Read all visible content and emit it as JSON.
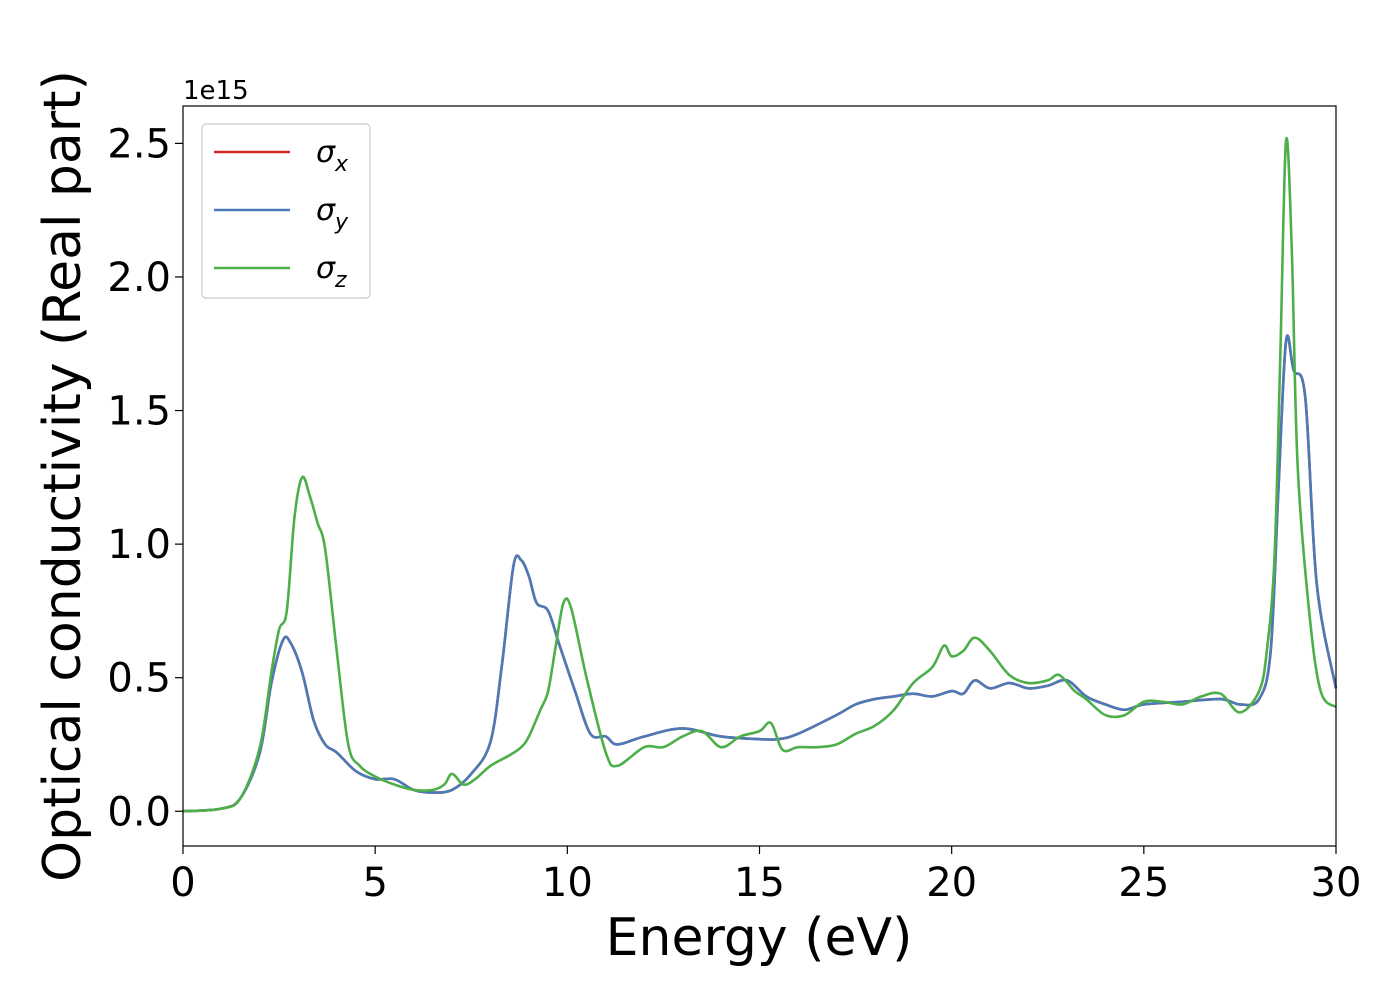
{
  "chart_data": {
    "type": "line",
    "xlabel": "Energy (eV)",
    "ylabel": "Optical conductivity (Real part)",
    "y_offset_text": "1e15",
    "xlim": [
      0,
      30
    ],
    "ylim": [
      -0.13,
      2.64
    ],
    "x_ticks": [
      0,
      5,
      10,
      15,
      20,
      25,
      30
    ],
    "x_tick_labels": [
      "0",
      "5",
      "10",
      "15",
      "20",
      "25",
      "30"
    ],
    "y_ticks": [
      0,
      0.5,
      1.0,
      1.5,
      2.0,
      2.5
    ],
    "y_tick_labels": [
      "0.0",
      "0.5",
      "1.0",
      "1.5",
      "2.0",
      "2.5"
    ],
    "grid": false,
    "legend_position": "top-left",
    "series": [
      {
        "name": "σx",
        "base": "σ",
        "sub": "x",
        "color": "#d62728",
        "x": [
          0,
          1,
          1.5,
          2,
          2.3,
          2.6,
          2.8,
          3.1,
          3.4,
          3.7,
          4,
          4.5,
          5,
          5.5,
          6,
          6.5,
          7,
          7.5,
          8,
          8.3,
          8.6,
          8.8,
          9,
          9.2,
          9.5,
          9.8,
          10.2,
          10.6,
          11,
          11.3,
          12,
          13,
          14,
          15,
          15.5,
          16,
          17,
          17.5,
          18,
          18.5,
          19,
          19.5,
          20,
          20.3,
          20.6,
          21,
          21.5,
          22,
          22.5,
          23,
          23.5,
          24,
          24.5,
          25,
          26,
          27,
          27.5,
          28,
          28.3,
          28.5,
          28.7,
          28.9,
          29.2,
          29.5,
          30
        ],
        "y": [
          0,
          0.01,
          0.05,
          0.22,
          0.48,
          0.64,
          0.63,
          0.52,
          0.34,
          0.25,
          0.22,
          0.15,
          0.12,
          0.12,
          0.08,
          0.07,
          0.08,
          0.14,
          0.26,
          0.55,
          0.92,
          0.94,
          0.88,
          0.78,
          0.75,
          0.62,
          0.45,
          0.29,
          0.28,
          0.25,
          0.28,
          0.31,
          0.28,
          0.27,
          0.27,
          0.29,
          0.36,
          0.4,
          0.42,
          0.43,
          0.44,
          0.43,
          0.45,
          0.44,
          0.49,
          0.46,
          0.48,
          0.46,
          0.47,
          0.49,
          0.43,
          0.4,
          0.38,
          0.4,
          0.41,
          0.42,
          0.4,
          0.42,
          0.6,
          1.2,
          1.76,
          1.65,
          1.55,
          0.85,
          0.46
        ]
      },
      {
        "name": "σy",
        "base": "σ",
        "sub": "y",
        "color": "#4a7bb7",
        "x": [
          0,
          1,
          1.5,
          2,
          2.3,
          2.6,
          2.8,
          3.1,
          3.4,
          3.7,
          4,
          4.5,
          5,
          5.5,
          6,
          6.5,
          7,
          7.5,
          8,
          8.3,
          8.6,
          8.8,
          9,
          9.2,
          9.5,
          9.8,
          10.2,
          10.6,
          11,
          11.3,
          12,
          13,
          14,
          15,
          15.5,
          16,
          17,
          17.5,
          18,
          18.5,
          19,
          19.5,
          20,
          20.3,
          20.6,
          21,
          21.5,
          22,
          22.5,
          23,
          23.5,
          24,
          24.5,
          25,
          26,
          27,
          27.5,
          28,
          28.3,
          28.5,
          28.7,
          28.9,
          29.2,
          29.5,
          30
        ],
        "y": [
          0,
          0.01,
          0.05,
          0.22,
          0.48,
          0.64,
          0.63,
          0.52,
          0.34,
          0.25,
          0.22,
          0.15,
          0.12,
          0.12,
          0.08,
          0.07,
          0.08,
          0.14,
          0.26,
          0.55,
          0.92,
          0.94,
          0.88,
          0.78,
          0.75,
          0.62,
          0.45,
          0.29,
          0.28,
          0.25,
          0.28,
          0.31,
          0.28,
          0.27,
          0.27,
          0.29,
          0.36,
          0.4,
          0.42,
          0.43,
          0.44,
          0.43,
          0.45,
          0.44,
          0.49,
          0.46,
          0.48,
          0.46,
          0.47,
          0.49,
          0.43,
          0.4,
          0.38,
          0.4,
          0.41,
          0.42,
          0.4,
          0.42,
          0.6,
          1.2,
          1.76,
          1.65,
          1.55,
          0.85,
          0.46
        ]
      },
      {
        "name": "σz",
        "base": "σ",
        "sub": "z",
        "color": "#4daf4a",
        "x": [
          0,
          1,
          1.5,
          2,
          2.3,
          2.5,
          2.7,
          2.9,
          3.1,
          3.3,
          3.5,
          3.7,
          4,
          4.3,
          4.6,
          5,
          5.5,
          6,
          6.5,
          6.8,
          7,
          7.3,
          7.6,
          8,
          8.5,
          8.8,
          9,
          9.3,
          9.5,
          9.7,
          9.9,
          10.1,
          10.5,
          11,
          11.3,
          12,
          12.5,
          13,
          13.5,
          14,
          14.5,
          15,
          15.3,
          15.6,
          16,
          16.5,
          17,
          17.5,
          18,
          18.5,
          19,
          19.5,
          19.8,
          20,
          20.3,
          20.6,
          21,
          21.5,
          22,
          22.5,
          22.8,
          23.2,
          23.5,
          24,
          24.5,
          25,
          25.5,
          26,
          26.5,
          27,
          27.5,
          28,
          28.2,
          28.4,
          28.55,
          28.7,
          28.85,
          29,
          29.3,
          29.6,
          30
        ],
        "y": [
          0,
          0.01,
          0.05,
          0.24,
          0.52,
          0.68,
          0.75,
          1.1,
          1.25,
          1.18,
          1.08,
          0.98,
          0.6,
          0.25,
          0.17,
          0.13,
          0.1,
          0.08,
          0.08,
          0.1,
          0.14,
          0.1,
          0.12,
          0.17,
          0.21,
          0.24,
          0.28,
          0.38,
          0.45,
          0.62,
          0.78,
          0.76,
          0.5,
          0.22,
          0.17,
          0.24,
          0.24,
          0.28,
          0.3,
          0.24,
          0.28,
          0.3,
          0.33,
          0.23,
          0.24,
          0.24,
          0.25,
          0.29,
          0.32,
          0.38,
          0.48,
          0.54,
          0.62,
          0.58,
          0.6,
          0.65,
          0.6,
          0.51,
          0.48,
          0.49,
          0.51,
          0.45,
          0.42,
          0.36,
          0.36,
          0.41,
          0.41,
          0.4,
          0.43,
          0.44,
          0.37,
          0.45,
          0.6,
          0.95,
          1.7,
          2.51,
          2.1,
          1.3,
          0.75,
          0.45,
          0.39
        ]
      }
    ]
  }
}
